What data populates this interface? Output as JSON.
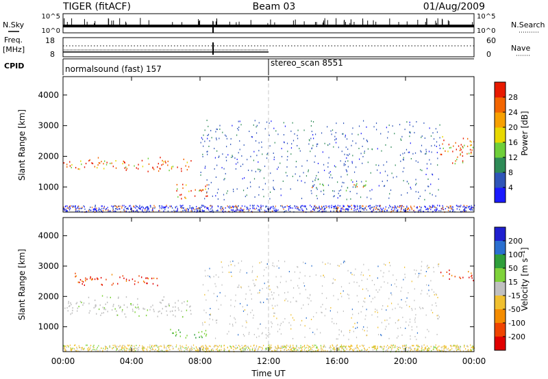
{
  "header": {
    "radar": "TIGER (fitACF)",
    "beam": "Beam 03",
    "date": "01/Aug/2009"
  },
  "summary_panel": {
    "nsky_label": "N.Sky",
    "nsky_ticks": [
      "10^5",
      "10^0"
    ],
    "nsearch_label": "N.Search",
    "nsearch_ticks": [
      "10^5",
      "10^0"
    ],
    "freq_label": "Freq.",
    "freq_unit": "[MHz]",
    "freq_ticks": [
      "18",
      "8"
    ],
    "nave_label": "Nave",
    "nave_ticks": [
      "60",
      "0"
    ],
    "cpid_label": "CPID",
    "cpid_programs": [
      {
        "name": "normalsound (fast) 157",
        "start_hour": 0
      },
      {
        "name": "stereo_scan 8551",
        "start_hour": 12
      }
    ]
  },
  "chart_data": [
    {
      "type": "heatmap",
      "name": "Power",
      "xlabel": "",
      "ylabel": "Slant Range [km]",
      "xlim_hours": [
        0,
        24
      ],
      "ylim_km": [
        180,
        4600
      ],
      "yticks": [
        1000,
        2000,
        3000,
        4000
      ],
      "colorbar": {
        "label": "Power [dB]",
        "ticks": [
          "4",
          "8",
          "12",
          "16",
          "20",
          "24",
          "28"
        ],
        "colors": [
          "#1a1aff",
          "#2f55b8",
          "#2e8b57",
          "#6fcf3a",
          "#e8d800",
          "#f7a000",
          "#f36500",
          "#e81a00"
        ]
      },
      "features": [
        {
          "region": "F-region band",
          "start_hour": 0,
          "end_hour": 7.5,
          "range_km": [
            1500,
            2000
          ],
          "level": "high"
        },
        {
          "region": "scatter patch",
          "start_hour": 6.5,
          "end_hour": 8.5,
          "range_km": [
            600,
            1200
          ],
          "level": "high"
        },
        {
          "region": "scatter patch",
          "start_hour": 14.5,
          "end_hour": 15.2,
          "range_km": [
            800,
            1400
          ],
          "level": "medium"
        },
        {
          "region": "scatter patch",
          "start_hour": 16.5,
          "end_hour": 17.8,
          "range_km": [
            800,
            1300
          ],
          "level": "medium"
        },
        {
          "region": "F-region band",
          "start_hour": 22,
          "end_hour": 24,
          "range_km": [
            1700,
            2800
          ],
          "level": "high"
        }
      ]
    },
    {
      "type": "heatmap",
      "name": "Velocity",
      "xlabel": "Time UT",
      "ylabel": "Slant Range [km]",
      "xlim_hours": [
        0,
        24
      ],
      "ylim_km": [
        180,
        4600
      ],
      "yticks": [
        1000,
        2000,
        3000,
        4000
      ],
      "xticks": [
        "00:00",
        "04:00",
        "08:00",
        "12:00",
        "16:00",
        "20:00",
        "00:00"
      ],
      "colorbar": {
        "label": "Velocity [m s⁻¹]",
        "ticks": [
          "200",
          "100",
          "50",
          "15",
          "-15",
          "-50",
          "-100",
          "-200"
        ],
        "colors": [
          "#1f1fcf",
          "#2a6fcf",
          "#2e9e3a",
          "#7ed23a",
          "#c0c0c0",
          "#f0c030",
          "#f48c00",
          "#ef4400",
          "#e00000"
        ]
      },
      "features": [
        {
          "region": "ground scatter band",
          "start_hour": 0,
          "end_hour": 7.5,
          "range_km": [
            1300,
            2100
          ],
          "velocity": "near zero"
        },
        {
          "region": "low velocity patch",
          "start_hour": 6,
          "end_hour": 8.5,
          "range_km": [
            600,
            1000
          ],
          "velocity": "positive"
        },
        {
          "region": "high velocity echoes",
          "start_hour": 0.5,
          "end_hour": 5.5,
          "range_km": [
            2300,
            2800
          ],
          "velocity": "negative"
        },
        {
          "region": "high velocity echoes",
          "start_hour": 22,
          "end_hour": 24,
          "range_km": [
            2500,
            2900
          ],
          "velocity": "negative"
        }
      ]
    }
  ]
}
